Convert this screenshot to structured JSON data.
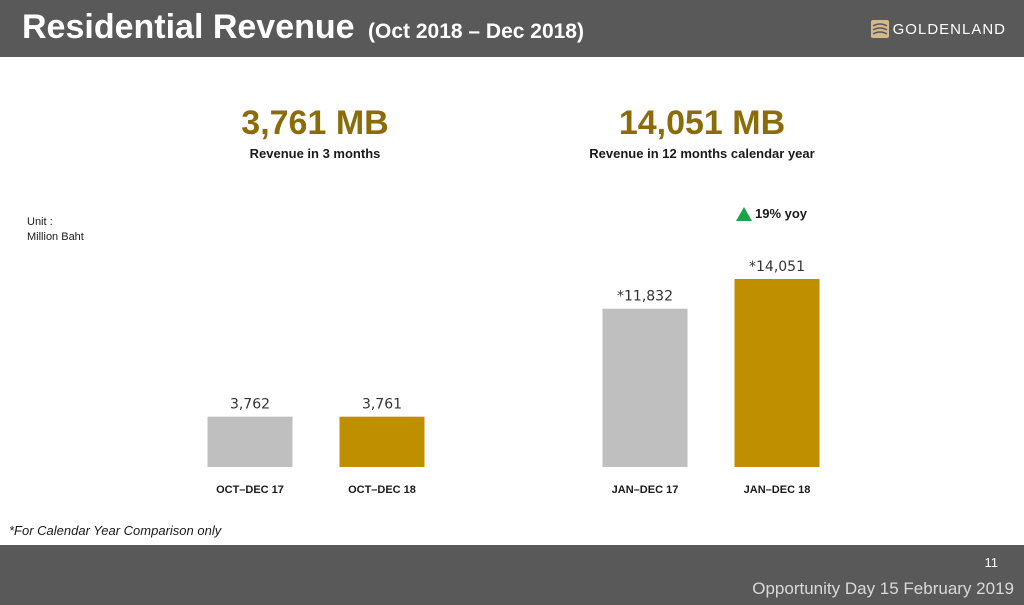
{
  "header": {
    "title": "Residential Revenue",
    "subtitle": "(Oct 2018 – Dec 2018)",
    "logo_text": "GOLDENLAND",
    "bg_color": "#595959"
  },
  "summary": {
    "left_value": "3,761 MB",
    "left_caption": "Revenue in 3 months",
    "right_value": "14,051 MB",
    "right_caption": "Revenue in 12 months calendar year",
    "value_color": "#8a6d0a"
  },
  "unit": {
    "label": "Unit :",
    "value": "Million Baht"
  },
  "growth": {
    "label": "19% yoy",
    "icon": "triangle-up-icon",
    "color": "#1aa34a"
  },
  "footnote": "*For Calendar Year Comparison only",
  "footer": {
    "page_number": "11",
    "event": "Opportunity Day 15 February 2019"
  },
  "chart_data": [
    {
      "type": "bar",
      "categories": [
        "OCT–DEC 17",
        "OCT–DEC 18"
      ],
      "values": [
        3762,
        3761
      ],
      "labels": [
        "3,762",
        "3,761"
      ],
      "colors": [
        "#bfbfbf",
        "#bf8f00"
      ]
    },
    {
      "type": "bar",
      "categories": [
        "JAN–DEC 17",
        "JAN–DEC 18"
      ],
      "values": [
        11832,
        14051
      ],
      "labels": [
        "*11,832",
        "*14,051"
      ],
      "colors": [
        "#bfbfbf",
        "#bf8f00"
      ]
    }
  ]
}
